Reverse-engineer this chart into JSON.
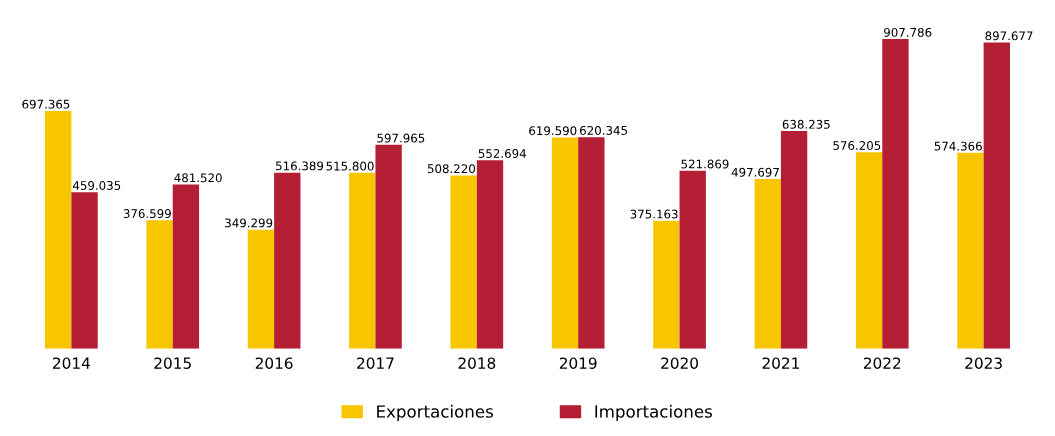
{
  "chart_data": {
    "type": "bar",
    "categories": [
      "2014",
      "2015",
      "2016",
      "2017",
      "2018",
      "2019",
      "2020",
      "2021",
      "2022",
      "2023"
    ],
    "series": [
      {
        "name": "Exportaciones",
        "color": "#f7c600",
        "values": [
          697.365,
          376.599,
          349.299,
          515.8,
          508.22,
          619.59,
          375.163,
          497.697,
          576.205,
          574.366
        ],
        "value_labels": [
          "697.365",
          "376.599",
          "349.299",
          "515.800",
          "508.220",
          "619.590",
          "375.163",
          "497.697",
          "576.205",
          "574.366"
        ]
      },
      {
        "name": "Importaciones",
        "color": "#b51f36",
        "values": [
          459.035,
          481.52,
          516.389,
          597.965,
          552.694,
          620.345,
          521.869,
          638.235,
          907.786,
          897.677
        ],
        "value_labels": [
          "459.035",
          "481.520",
          "516.389",
          "597.965",
          "552.694",
          "620.345",
          "521.869",
          "638.235",
          "907.786",
          "897.677"
        ]
      }
    ],
    "legend": "bottom",
    "grid": false
  }
}
